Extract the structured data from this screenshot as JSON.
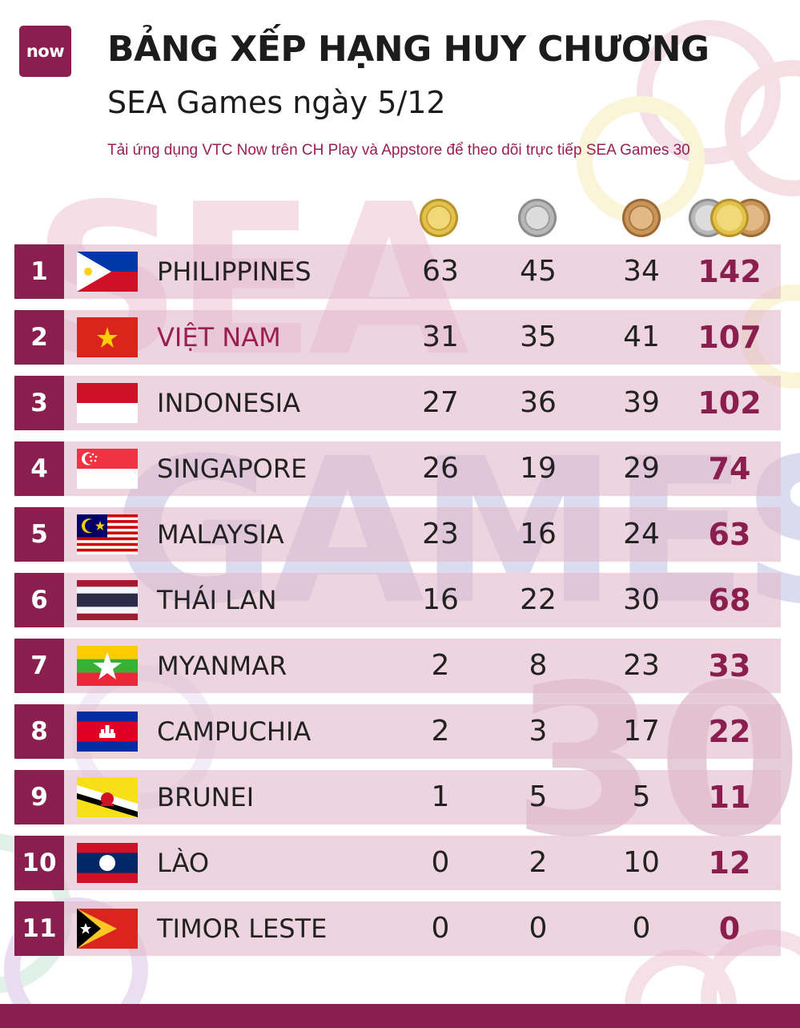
{
  "header": {
    "logo": "now",
    "title": "BẢNG XẾP HẠNG HUY CHƯƠNG",
    "subtitle": "SEA Games ngày 5/12",
    "promo": "Tải ứng dụng VTC Now trên CH Play và Appstore để theo dõi trực tiếp SEA Games 30"
  },
  "medal_icons": [
    "gold-medal-icon",
    "silver-medal-icon",
    "bronze-medal-icon",
    "total-medals-icon"
  ],
  "colors": {
    "brand": "#8a1f4f",
    "row_band": "#e2bacb",
    "highlight": "#9b1e52",
    "gold": "#d9b53a",
    "silver": "#a9a9a9",
    "bronze": "#c08a4e"
  },
  "rows": [
    {
      "rank": "1",
      "country": "PHILIPPINES",
      "gold": "63",
      "silver": "45",
      "bronze": "34",
      "total": "142"
    },
    {
      "rank": "2",
      "country": "VIỆT NAM",
      "gold": "31",
      "silver": "35",
      "bronze": "41",
      "total": "107"
    },
    {
      "rank": "3",
      "country": "INDONESIA",
      "gold": "27",
      "silver": "36",
      "bronze": "39",
      "total": "102"
    },
    {
      "rank": "4",
      "country": "SINGAPORE",
      "gold": "26",
      "silver": "19",
      "bronze": "29",
      "total": "74"
    },
    {
      "rank": "5",
      "country": "MALAYSIA",
      "gold": "23",
      "silver": "16",
      "bronze": "24",
      "total": "63"
    },
    {
      "rank": "6",
      "country": "THÁI LAN",
      "gold": "16",
      "silver": "22",
      "bronze": "30",
      "total": "68"
    },
    {
      "rank": "7",
      "country": "MYANMAR",
      "gold": "2",
      "silver": "8",
      "bronze": "23",
      "total": "33"
    },
    {
      "rank": "8",
      "country": "CAMPUCHIA",
      "gold": "2",
      "silver": "3",
      "bronze": "17",
      "total": "22"
    },
    {
      "rank": "9",
      "country": "BRUNEI",
      "gold": "1",
      "silver": "5",
      "bronze": "5",
      "total": "11"
    },
    {
      "rank": "10",
      "country": "LÀO",
      "gold": "0",
      "silver": "2",
      "bronze": "10",
      "total": "12"
    },
    {
      "rank": "11",
      "country": "TIMOR LESTE",
      "gold": "0",
      "silver": "0",
      "bronze": "0",
      "total": "0"
    }
  ]
}
